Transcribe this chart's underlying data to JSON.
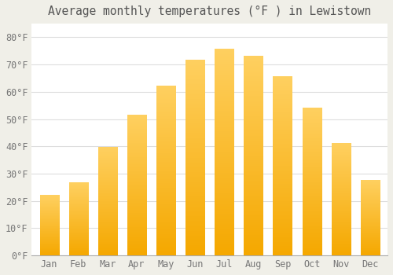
{
  "title": "Average monthly temperatures (°F ) in Lewistown",
  "months": [
    "Jan",
    "Feb",
    "Mar",
    "Apr",
    "May",
    "Jun",
    "Jul",
    "Aug",
    "Sep",
    "Oct",
    "Nov",
    "Dec"
  ],
  "values": [
    22,
    26.5,
    39.5,
    51.5,
    62,
    71.5,
    75.5,
    73,
    65.5,
    54,
    41,
    27.5
  ],
  "bar_color_bottom": "#F5A800",
  "bar_color_top": "#FFD060",
  "figure_bg_color": "#F0EFE8",
  "plot_bg_color": "#FFFFFF",
  "ylim": [
    0,
    85
  ],
  "yticks": [
    0,
    10,
    20,
    30,
    40,
    50,
    60,
    70,
    80
  ],
  "grid_color": "#DDDDDD",
  "title_fontsize": 10.5,
  "tick_fontsize": 8.5,
  "tick_color": "#777777",
  "title_color": "#555555",
  "font_family": "monospace",
  "bar_width": 0.65
}
